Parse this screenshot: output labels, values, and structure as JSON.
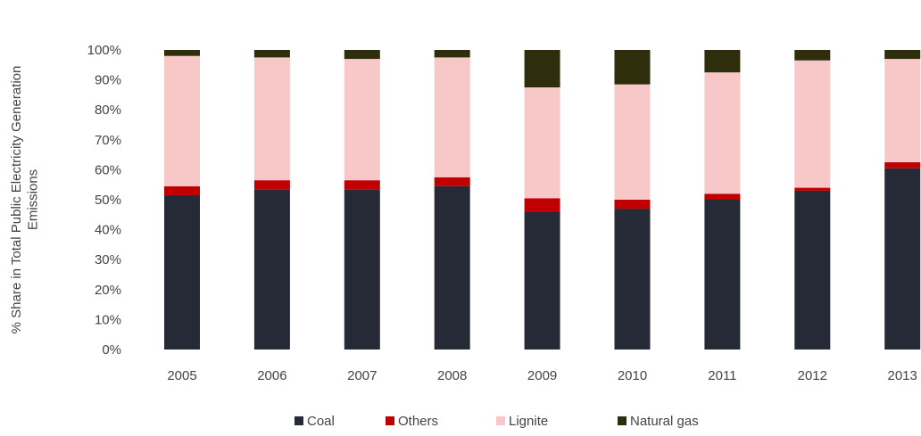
{
  "chart_data": {
    "type": "bar",
    "stacked": true,
    "categories": [
      "2005",
      "2006",
      "2007",
      "2008",
      "2009",
      "2010",
      "2011",
      "2012",
      "2013"
    ],
    "series": [
      {
        "name": "Coal",
        "color": "#252a36",
        "values": [
          51.5,
          53.5,
          53.5,
          54.5,
          46,
          47,
          50,
          53,
          60.5
        ]
      },
      {
        "name": "Others",
        "color": "#c00000",
        "values": [
          3,
          3,
          3,
          3,
          4.5,
          3,
          2,
          1,
          2
        ]
      },
      {
        "name": "Lignite",
        "color": "#f8c8c8",
        "values": [
          43.5,
          41,
          40.5,
          40,
          37,
          38.5,
          40.5,
          42.5,
          34.5
        ]
      },
      {
        "name": "Natural gas",
        "color": "#2e2e0c",
        "values": [
          2,
          2.5,
          3,
          2.5,
          12.5,
          11.5,
          7.5,
          3.5,
          3
        ]
      }
    ],
    "ylabel": "% Share in Total Public Electricity Generation Emissions",
    "ylim": [
      0,
      100
    ],
    "yticks": [
      "0%",
      "10%",
      "20%",
      "30%",
      "40%",
      "50%",
      "60%",
      "70%",
      "80%",
      "90%",
      "100%"
    ],
    "grid": false,
    "legend_position": "bottom"
  }
}
